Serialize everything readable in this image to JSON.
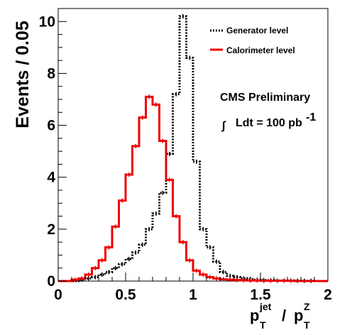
{
  "chart_data": {
    "type": "histogram",
    "ylabel": "Events / 0.05",
    "xlabel": {
      "main": "p",
      "sub": "T",
      "sup": "jet",
      "separator": "/",
      "main2": "p",
      "sub2": "T",
      "sup2": "Z"
    },
    "xlim": [
      0,
      2
    ],
    "ylim": [
      0,
      10.5
    ],
    "x_ticks": [
      0,
      0.5,
      1,
      1.5,
      2
    ],
    "x_tick_labels": [
      "0",
      "0.5",
      "1",
      "1.5",
      "2"
    ],
    "y_ticks": [
      0,
      2,
      4,
      6,
      8,
      10
    ],
    "y_tick_labels": [
      "0",
      "2",
      "4",
      "6",
      "8",
      "10"
    ],
    "bin_width": 0.05,
    "x": [
      0.025,
      0.075,
      0.125,
      0.175,
      0.225,
      0.275,
      0.325,
      0.375,
      0.425,
      0.475,
      0.525,
      0.575,
      0.625,
      0.675,
      0.725,
      0.775,
      0.825,
      0.875,
      0.925,
      0.975,
      1.025,
      1.075,
      1.125,
      1.175,
      1.225,
      1.275,
      1.325,
      1.375,
      1.425,
      1.475,
      1.525,
      1.575,
      1.625,
      1.675,
      1.725,
      1.775,
      1.825,
      1.875,
      1.925,
      1.975
    ],
    "series": [
      {
        "name": "Generator level",
        "color": "#000000",
        "line_style": "dotted",
        "values": [
          0.0,
          0.0,
          0.0,
          0.05,
          0.1,
          0.15,
          0.25,
          0.35,
          0.5,
          0.65,
          0.85,
          1.1,
          1.4,
          2.0,
          2.6,
          3.4,
          4.9,
          7.2,
          10.2,
          8.6,
          4.6,
          2.0,
          1.3,
          0.75,
          0.35,
          0.2,
          0.15,
          0.1,
          0.08,
          0.05,
          0.04,
          0.03,
          0.02,
          0.02,
          0.02,
          0.01,
          0.01,
          0.01,
          0.0,
          0.0
        ]
      },
      {
        "name": "Calorimeter level",
        "color": "#ee0000",
        "line_style": "solid",
        "values": [
          0.0,
          0.0,
          0.05,
          0.1,
          0.25,
          0.5,
          0.8,
          1.3,
          2.1,
          3.1,
          4.1,
          5.2,
          6.3,
          7.1,
          6.8,
          5.4,
          3.9,
          2.5,
          1.5,
          0.8,
          0.4,
          0.25,
          0.15,
          0.1,
          0.07,
          0.05,
          0.04,
          0.03,
          0.02,
          0.02,
          0.01,
          0.01,
          0.01,
          0.01,
          0.01,
          0.0,
          0.0,
          0.0,
          0.0,
          0.0
        ]
      }
    ],
    "legend_position": "top-right",
    "annotation": {
      "line1": "CMS Preliminary",
      "line2_prefix": "Ldt = 100 pb",
      "line2_sup": "-1",
      "integral_symbol": "∫"
    }
  }
}
